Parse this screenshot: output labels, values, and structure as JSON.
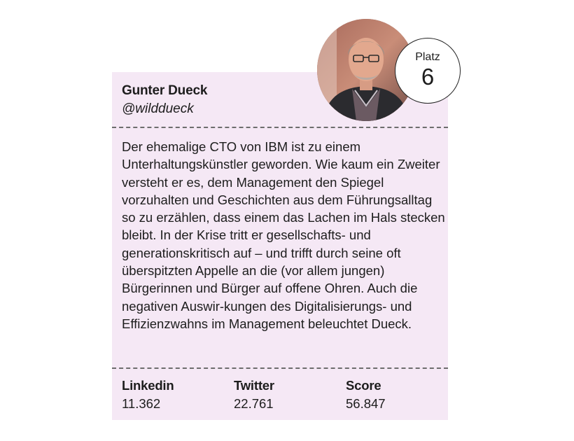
{
  "profile": {
    "name": "Gunter Dueck",
    "handle": "@wilddueck",
    "bio": "Der ehemalige CTO von IBM ist zu einem Unterhaltungskünstler geworden. Wie kaum ein Zweiter versteht er es, dem Management den Spiegel vorzuhalten und Geschichten aus dem Führungsalltag so zu erzählen, dass einem das Lachen im Hals stecken bleibt. In der Krise tritt er gesellschafts- und generationskritisch auf – und trifft durch seine oft überspitzten Appelle an die (vor allem jungen) Bürgerinnen und Bürger auf offene Ohren. Auch die negativen Auswir-kungen des Digitalisierungs- und Effizienzwahns im Management beleuchtet Dueck."
  },
  "rank": {
    "label": "Platz",
    "value": "6"
  },
  "stats": {
    "linkedin": {
      "label": "Linkedin",
      "value": "11.362"
    },
    "twitter": {
      "label": "Twitter",
      "value": "22.761"
    },
    "score": {
      "label": "Score",
      "value": "56.847"
    }
  },
  "colors": {
    "card_background": "#f5e8f5",
    "divider": "#6d6d6d",
    "text": "#1d1d1d"
  }
}
